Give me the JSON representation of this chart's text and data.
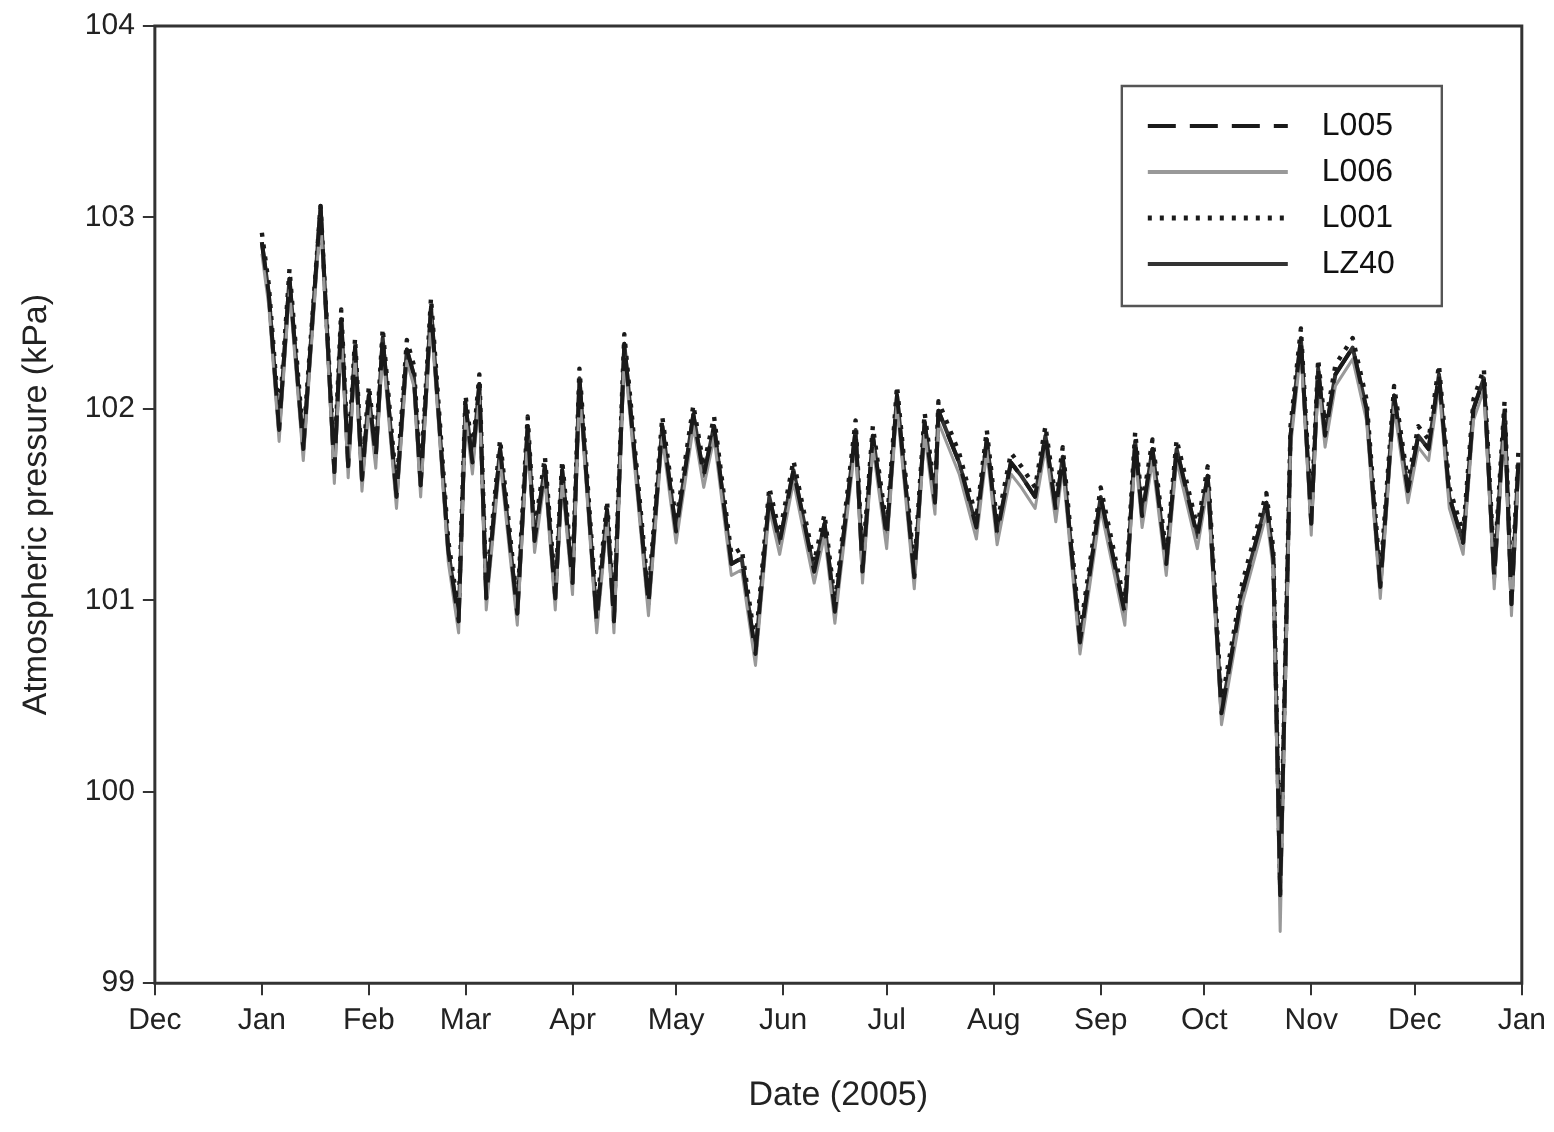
{
  "chart_data": {
    "type": "line",
    "xlabel": "Date (2005)",
    "ylabel": "Atmospheric pressure (kPa)",
    "x": [
      "2005-01-01",
      "2005-01-03",
      "2005-01-06",
      "2005-01-09",
      "2005-01-13",
      "2005-01-18",
      "2005-01-22",
      "2005-01-24",
      "2005-01-26",
      "2005-01-28",
      "2005-01-30",
      "2005-02-01",
      "2005-02-03",
      "2005-02-05",
      "2005-02-09",
      "2005-02-12",
      "2005-02-14",
      "2005-02-16",
      "2005-02-19",
      "2005-02-24",
      "2005-02-27",
      "2005-03-01",
      "2005-03-03",
      "2005-03-05",
      "2005-03-07",
      "2005-03-11",
      "2005-03-16",
      "2005-03-19",
      "2005-03-21",
      "2005-03-24",
      "2005-03-27",
      "2005-03-29",
      "2005-04-01",
      "2005-04-03",
      "2005-04-08",
      "2005-04-11",
      "2005-04-13",
      "2005-04-16",
      "2005-04-23",
      "2005-04-27",
      "2005-05-01",
      "2005-05-06",
      "2005-05-09",
      "2005-05-12",
      "2005-05-17",
      "2005-05-20",
      "2005-05-24",
      "2005-05-28",
      "2005-05-31",
      "2005-06-04",
      "2005-06-10",
      "2005-06-13",
      "2005-06-16",
      "2005-06-22",
      "2005-06-24",
      "2005-06-27",
      "2005-07-01",
      "2005-07-04",
      "2005-07-09",
      "2005-07-12",
      "2005-07-15",
      "2005-07-16",
      "2005-07-22",
      "2005-07-27",
      "2005-07-30",
      "2005-08-02",
      "2005-08-06",
      "2005-08-09",
      "2005-08-13",
      "2005-08-16",
      "2005-08-19",
      "2005-08-21",
      "2005-08-26",
      "2005-09-01",
      "2005-09-08",
      "2005-09-11",
      "2005-09-13",
      "2005-09-16",
      "2005-09-20",
      "2005-09-23",
      "2005-09-29",
      "2005-10-02",
      "2005-10-06",
      "2005-10-12",
      "2005-10-19",
      "2005-10-21",
      "2005-10-23",
      "2005-10-26",
      "2005-10-29",
      "2005-11-01",
      "2005-11-03",
      "2005-11-05",
      "2005-11-08",
      "2005-11-13",
      "2005-11-17",
      "2005-11-21",
      "2005-11-25",
      "2005-11-29",
      "2005-12-02",
      "2005-12-05",
      "2005-12-08",
      "2005-12-11",
      "2005-12-15",
      "2005-12-18",
      "2005-12-21",
      "2005-12-24",
      "2005-12-27",
      "2005-12-29",
      "2005-12-31"
    ],
    "series": [
      {
        "name": "L005",
        "color": "#1a1a1a",
        "line_style": "dashed",
        "values": [
          102.87,
          102.6,
          101.89,
          102.68,
          101.79,
          103.06,
          101.67,
          102.47,
          101.7,
          102.32,
          101.63,
          102.07,
          101.75,
          102.37,
          101.54,
          102.31,
          102.18,
          101.6,
          102.53,
          101.26,
          100.89,
          102.02,
          101.72,
          102.13,
          101.01,
          101.79,
          100.93,
          101.91,
          101.31,
          101.7,
          101.01,
          101.68,
          101.09,
          102.16,
          100.89,
          101.47,
          100.89,
          102.34,
          100.98,
          101.91,
          101.36,
          101.97,
          101.65,
          101.91,
          101.19,
          101.22,
          100.72,
          101.54,
          101.3,
          101.68,
          101.15,
          101.4,
          100.94,
          101.89,
          101.15,
          101.86,
          101.33,
          102.07,
          101.12,
          101.93,
          101.51,
          101.99,
          101.72,
          101.38,
          101.84,
          101.35,
          101.72,
          101.65,
          101.54,
          101.86,
          101.47,
          101.75,
          100.78,
          101.54,
          100.93,
          101.83,
          101.44,
          101.79,
          101.19,
          101.79,
          101.33,
          101.65,
          100.41,
          101.04,
          101.51,
          101.22,
          99.46,
          101.86,
          102.37,
          101.4,
          102.21,
          101.86,
          102.18,
          102.32,
          102.0,
          101.07,
          102.07,
          101.57,
          101.86,
          101.79,
          102.18,
          101.54,
          101.3,
          102.0,
          102.16,
          101.12,
          101.99,
          100.98,
          101.72
        ]
      },
      {
        "name": "L006",
        "color": "#999999",
        "line_style": "solid",
        "values": [
          102.81,
          102.54,
          101.83,
          102.62,
          101.73,
          103.0,
          101.61,
          102.41,
          101.64,
          102.26,
          101.57,
          102.01,
          101.69,
          102.31,
          101.48,
          102.25,
          102.12,
          101.54,
          102.47,
          101.2,
          100.83,
          101.96,
          101.66,
          102.07,
          100.95,
          101.73,
          100.87,
          101.85,
          101.25,
          101.64,
          100.95,
          101.62,
          101.03,
          102.1,
          100.83,
          101.41,
          100.83,
          102.28,
          100.92,
          101.85,
          101.3,
          101.91,
          101.59,
          101.85,
          101.13,
          101.16,
          100.66,
          101.48,
          101.24,
          101.62,
          101.09,
          101.34,
          100.88,
          101.83,
          101.09,
          101.8,
          101.27,
          102.01,
          101.06,
          101.87,
          101.45,
          101.93,
          101.66,
          101.32,
          101.78,
          101.29,
          101.66,
          101.59,
          101.48,
          101.8,
          101.41,
          101.69,
          100.72,
          101.48,
          100.87,
          101.77,
          101.38,
          101.73,
          101.13,
          101.73,
          101.27,
          101.59,
          100.35,
          100.98,
          101.45,
          101.16,
          99.27,
          101.8,
          102.31,
          101.34,
          102.15,
          101.8,
          102.12,
          102.26,
          101.94,
          101.01,
          102.01,
          101.51,
          101.8,
          101.73,
          102.12,
          101.48,
          101.24,
          101.94,
          102.1,
          101.06,
          101.93,
          100.92,
          101.66
        ]
      },
      {
        "name": "L001",
        "color": "#1a1a1a",
        "line_style": "dotted",
        "values": [
          102.92,
          102.65,
          101.94,
          102.73,
          101.84,
          103.06,
          101.72,
          102.52,
          101.75,
          102.37,
          101.68,
          102.12,
          101.8,
          102.42,
          101.59,
          102.36,
          102.23,
          101.65,
          102.58,
          101.31,
          100.94,
          102.07,
          101.77,
          102.18,
          101.06,
          101.84,
          100.98,
          101.96,
          101.36,
          101.75,
          101.06,
          101.73,
          101.14,
          102.21,
          100.94,
          101.52,
          100.94,
          102.39,
          101.03,
          101.96,
          101.41,
          102.02,
          101.7,
          101.96,
          101.24,
          101.27,
          100.77,
          101.59,
          101.35,
          101.73,
          101.2,
          101.45,
          100.99,
          101.94,
          101.2,
          101.91,
          101.38,
          102.12,
          101.17,
          101.98,
          101.56,
          102.04,
          101.77,
          101.43,
          101.89,
          101.4,
          101.77,
          101.7,
          101.59,
          101.91,
          101.52,
          101.8,
          100.83,
          101.59,
          100.98,
          101.88,
          101.49,
          101.84,
          101.24,
          101.84,
          101.38,
          101.7,
          100.46,
          101.09,
          101.56,
          101.27,
          99.51,
          101.91,
          102.42,
          101.45,
          102.26,
          101.91,
          102.23,
          102.37,
          102.05,
          101.12,
          102.12,
          101.62,
          101.91,
          101.84,
          102.23,
          101.59,
          101.35,
          102.05,
          102.21,
          101.17,
          102.04,
          101.03,
          101.77
        ]
      },
      {
        "name": "LZ40",
        "color": "#333333",
        "line_style": "solid",
        "values": [
          102.87,
          102.6,
          101.89,
          102.68,
          101.79,
          103.06,
          101.67,
          102.47,
          101.7,
          102.32,
          101.63,
          102.07,
          101.75,
          102.37,
          101.54,
          102.31,
          102.18,
          101.6,
          102.53,
          101.26,
          100.89,
          102.02,
          101.72,
          102.13,
          101.01,
          101.79,
          100.93,
          101.91,
          101.31,
          101.7,
          101.01,
          101.68,
          101.09,
          102.16,
          100.89,
          101.47,
          100.89,
          102.34,
          100.98,
          101.91,
          101.36,
          101.97,
          101.65,
          101.91,
          101.19,
          101.22,
          100.72,
          101.54,
          101.3,
          101.68,
          101.15,
          101.4,
          100.94,
          101.89,
          101.15,
          101.86,
          101.33,
          102.07,
          101.12,
          101.93,
          101.51,
          101.99,
          101.72,
          101.38,
          101.84,
          101.35,
          101.72,
          101.65,
          101.54,
          101.86,
          101.47,
          101.75,
          100.78,
          101.54,
          100.93,
          101.83,
          101.44,
          101.79,
          101.19,
          101.79,
          101.33,
          101.65,
          100.41,
          101.04,
          101.51,
          101.22,
          99.46,
          101.86,
          102.37,
          101.4,
          102.21,
          101.86,
          102.18,
          102.32,
          102.0,
          101.07,
          102.07,
          101.57,
          101.86,
          101.79,
          102.18,
          101.54,
          101.3,
          102.0,
          102.16,
          101.12,
          101.99,
          100.98,
          101.72
        ]
      }
    ],
    "xlim": [
      "2004-12-01",
      "2006-01-01"
    ],
    "xticks": [
      {
        "value": "2004-12-01",
        "label": "Dec"
      },
      {
        "value": "2005-01-01",
        "label": "Jan"
      },
      {
        "value": "2005-02-01",
        "label": "Feb"
      },
      {
        "value": "2005-03-01",
        "label": "Mar"
      },
      {
        "value": "2005-04-01",
        "label": "Apr"
      },
      {
        "value": "2005-05-01",
        "label": "May"
      },
      {
        "value": "2005-06-01",
        "label": "Jun"
      },
      {
        "value": "2005-07-01",
        "label": "Jul"
      },
      {
        "value": "2005-08-01",
        "label": "Aug"
      },
      {
        "value": "2005-09-01",
        "label": "Sep"
      },
      {
        "value": "2005-10-01",
        "label": "Oct"
      },
      {
        "value": "2005-11-01",
        "label": "Nov"
      },
      {
        "value": "2005-12-01",
        "label": "Dec"
      },
      {
        "value": "2006-01-01",
        "label": "Jan"
      }
    ],
    "ylim": [
      99,
      104
    ],
    "yticks": [
      99,
      100,
      101,
      102,
      103,
      104
    ],
    "legend": "top right",
    "marker": "none",
    "grid": false
  }
}
